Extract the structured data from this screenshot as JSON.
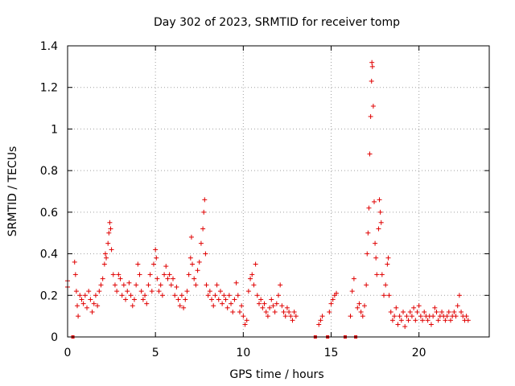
{
  "chart_data": {
    "type": "scatter",
    "title": "Day 302 of 2023, SRMTID for receiver tomp",
    "xlabel": "GPS time / hours",
    "ylabel": "SRMTID / TECUs",
    "xlim": [
      0,
      24
    ],
    "ylim": [
      0,
      1.4
    ],
    "xticks": [
      0,
      5,
      10,
      15,
      20
    ],
    "xtick_labels": [
      "0",
      "5",
      "10",
      "15",
      "20"
    ],
    "yticks": [
      0,
      0.2,
      0.4,
      0.6,
      0.8,
      1,
      1.2,
      1.4
    ],
    "ytick_labels": [
      "0",
      "0.2",
      "0.4",
      "0.6",
      "0.8",
      "1",
      "1.2",
      "1.4"
    ],
    "grid": true,
    "marker": "+",
    "color": "#e00000",
    "zero_markers_x": [
      0.3,
      14.1,
      14.8,
      15.8,
      16.4
    ],
    "series": [
      {
        "name": "SRMTID",
        "points": [
          [
            0.0,
            0.27
          ],
          [
            0.0,
            0.24
          ],
          [
            0.4,
            0.36
          ],
          [
            0.45,
            0.3
          ],
          [
            0.5,
            0.22
          ],
          [
            0.55,
            0.15
          ],
          [
            0.6,
            0.1
          ],
          [
            0.7,
            0.2
          ],
          [
            0.8,
            0.18
          ],
          [
            0.9,
            0.16
          ],
          [
            1.0,
            0.2
          ],
          [
            1.1,
            0.14
          ],
          [
            1.2,
            0.22
          ],
          [
            1.3,
            0.18
          ],
          [
            1.4,
            0.12
          ],
          [
            1.5,
            0.16
          ],
          [
            1.6,
            0.2
          ],
          [
            1.7,
            0.15
          ],
          [
            1.8,
            0.22
          ],
          [
            1.9,
            0.25
          ],
          [
            2.0,
            0.28
          ],
          [
            2.1,
            0.35
          ],
          [
            2.15,
            0.4
          ],
          [
            2.2,
            0.38
          ],
          [
            2.3,
            0.45
          ],
          [
            2.35,
            0.5
          ],
          [
            2.4,
            0.55
          ],
          [
            2.45,
            0.52
          ],
          [
            2.5,
            0.42
          ],
          [
            2.6,
            0.3
          ],
          [
            2.7,
            0.25
          ],
          [
            2.8,
            0.22
          ],
          [
            2.9,
            0.3
          ],
          [
            3.0,
            0.28
          ],
          [
            3.1,
            0.2
          ],
          [
            3.2,
            0.25
          ],
          [
            3.3,
            0.18
          ],
          [
            3.4,
            0.22
          ],
          [
            3.5,
            0.26
          ],
          [
            3.6,
            0.2
          ],
          [
            3.7,
            0.15
          ],
          [
            3.8,
            0.18
          ],
          [
            3.9,
            0.25
          ],
          [
            4.0,
            0.35
          ],
          [
            4.1,
            0.3
          ],
          [
            4.2,
            0.22
          ],
          [
            4.3,
            0.18
          ],
          [
            4.4,
            0.2
          ],
          [
            4.5,
            0.16
          ],
          [
            4.6,
            0.25
          ],
          [
            4.7,
            0.3
          ],
          [
            4.8,
            0.22
          ],
          [
            4.9,
            0.35
          ],
          [
            5.0,
            0.42
          ],
          [
            5.05,
            0.38
          ],
          [
            5.1,
            0.28
          ],
          [
            5.2,
            0.22
          ],
          [
            5.3,
            0.25
          ],
          [
            5.4,
            0.2
          ],
          [
            5.5,
            0.3
          ],
          [
            5.6,
            0.34
          ],
          [
            5.7,
            0.28
          ],
          [
            5.8,
            0.3
          ],
          [
            5.9,
            0.25
          ],
          [
            6.0,
            0.28
          ],
          [
            6.1,
            0.2
          ],
          [
            6.2,
            0.24
          ],
          [
            6.3,
            0.18
          ],
          [
            6.4,
            0.15
          ],
          [
            6.5,
            0.2
          ],
          [
            6.6,
            0.14
          ],
          [
            6.7,
            0.18
          ],
          [
            6.8,
            0.22
          ],
          [
            6.9,
            0.3
          ],
          [
            7.0,
            0.38
          ],
          [
            7.05,
            0.48
          ],
          [
            7.1,
            0.35
          ],
          [
            7.2,
            0.28
          ],
          [
            7.3,
            0.25
          ],
          [
            7.4,
            0.32
          ],
          [
            7.5,
            0.36
          ],
          [
            7.6,
            0.45
          ],
          [
            7.7,
            0.52
          ],
          [
            7.75,
            0.6
          ],
          [
            7.8,
            0.66
          ],
          [
            7.85,
            0.4
          ],
          [
            7.9,
            0.25
          ],
          [
            8.0,
            0.2
          ],
          [
            8.1,
            0.22
          ],
          [
            8.2,
            0.18
          ],
          [
            8.3,
            0.15
          ],
          [
            8.4,
            0.2
          ],
          [
            8.5,
            0.25
          ],
          [
            8.6,
            0.18
          ],
          [
            8.7,
            0.22
          ],
          [
            8.8,
            0.16
          ],
          [
            8.9,
            0.2
          ],
          [
            9.0,
            0.18
          ],
          [
            9.1,
            0.14
          ],
          [
            9.2,
            0.2
          ],
          [
            9.3,
            0.16
          ],
          [
            9.4,
            0.12
          ],
          [
            9.5,
            0.18
          ],
          [
            9.6,
            0.26
          ],
          [
            9.7,
            0.2
          ],
          [
            9.8,
            0.12
          ],
          [
            9.9,
            0.15
          ],
          [
            10.0,
            0.1
          ],
          [
            10.1,
            0.06
          ],
          [
            10.2,
            0.08
          ],
          [
            10.3,
            0.22
          ],
          [
            10.4,
            0.28
          ],
          [
            10.5,
            0.3
          ],
          [
            10.6,
            0.25
          ],
          [
            10.7,
            0.35
          ],
          [
            10.8,
            0.2
          ],
          [
            10.9,
            0.16
          ],
          [
            11.0,
            0.18
          ],
          [
            11.1,
            0.14
          ],
          [
            11.2,
            0.16
          ],
          [
            11.3,
            0.12
          ],
          [
            11.4,
            0.1
          ],
          [
            11.5,
            0.14
          ],
          [
            11.6,
            0.18
          ],
          [
            11.7,
            0.15
          ],
          [
            11.8,
            0.12
          ],
          [
            11.9,
            0.16
          ],
          [
            12.0,
            0.2
          ],
          [
            12.1,
            0.25
          ],
          [
            12.2,
            0.15
          ],
          [
            12.3,
            0.12
          ],
          [
            12.4,
            0.1
          ],
          [
            12.5,
            0.14
          ],
          [
            12.6,
            0.12
          ],
          [
            12.7,
            0.1
          ],
          [
            12.8,
            0.08
          ],
          [
            12.9,
            0.12
          ],
          [
            13.0,
            0.1
          ],
          [
            14.3,
            0.06
          ],
          [
            14.4,
            0.08
          ],
          [
            14.5,
            0.1
          ],
          [
            14.9,
            0.12
          ],
          [
            15.0,
            0.16
          ],
          [
            15.1,
            0.18
          ],
          [
            15.2,
            0.2
          ],
          [
            15.3,
            0.21
          ],
          [
            16.1,
            0.1
          ],
          [
            16.2,
            0.22
          ],
          [
            16.3,
            0.28
          ],
          [
            16.5,
            0.14
          ],
          [
            16.6,
            0.16
          ],
          [
            16.7,
            0.12
          ],
          [
            16.8,
            0.1
          ],
          [
            16.9,
            0.15
          ],
          [
            17.0,
            0.25
          ],
          [
            17.05,
            0.4
          ],
          [
            17.1,
            0.5
          ],
          [
            17.15,
            0.62
          ],
          [
            17.2,
            0.88
          ],
          [
            17.25,
            1.06
          ],
          [
            17.3,
            1.23
          ],
          [
            17.32,
            1.32
          ],
          [
            17.35,
            1.3
          ],
          [
            17.4,
            1.11
          ],
          [
            17.45,
            0.65
          ],
          [
            17.5,
            0.45
          ],
          [
            17.55,
            0.38
          ],
          [
            17.6,
            0.3
          ],
          [
            17.7,
            0.52
          ],
          [
            17.75,
            0.66
          ],
          [
            17.8,
            0.6
          ],
          [
            17.85,
            0.55
          ],
          [
            17.9,
            0.3
          ],
          [
            18.0,
            0.2
          ],
          [
            18.1,
            0.25
          ],
          [
            18.2,
            0.35
          ],
          [
            18.25,
            0.38
          ],
          [
            18.3,
            0.2
          ],
          [
            18.4,
            0.12
          ],
          [
            18.5,
            0.08
          ],
          [
            18.6,
            0.1
          ],
          [
            18.7,
            0.14
          ],
          [
            18.8,
            0.06
          ],
          [
            18.9,
            0.1
          ],
          [
            19.0,
            0.08
          ],
          [
            19.1,
            0.12
          ],
          [
            19.2,
            0.05
          ],
          [
            19.3,
            0.1
          ],
          [
            19.4,
            0.08
          ],
          [
            19.5,
            0.12
          ],
          [
            19.6,
            0.1
          ],
          [
            19.7,
            0.14
          ],
          [
            19.8,
            0.08
          ],
          [
            19.9,
            0.12
          ],
          [
            20.0,
            0.15
          ],
          [
            20.1,
            0.1
          ],
          [
            20.2,
            0.08
          ],
          [
            20.3,
            0.12
          ],
          [
            20.4,
            0.1
          ],
          [
            20.5,
            0.08
          ],
          [
            20.6,
            0.1
          ],
          [
            20.7,
            0.06
          ],
          [
            20.8,
            0.1
          ],
          [
            20.9,
            0.14
          ],
          [
            21.0,
            0.12
          ],
          [
            21.1,
            0.08
          ],
          [
            21.2,
            0.1
          ],
          [
            21.3,
            0.12
          ],
          [
            21.4,
            0.1
          ],
          [
            21.5,
            0.08
          ],
          [
            21.6,
            0.1
          ],
          [
            21.7,
            0.12
          ],
          [
            21.8,
            0.08
          ],
          [
            21.9,
            0.1
          ],
          [
            22.0,
            0.12
          ],
          [
            22.1,
            0.1
          ],
          [
            22.2,
            0.15
          ],
          [
            22.3,
            0.2
          ],
          [
            22.4,
            0.12
          ],
          [
            22.5,
            0.1
          ],
          [
            22.6,
            0.08
          ],
          [
            22.7,
            0.1
          ],
          [
            22.8,
            0.08
          ]
        ]
      }
    ]
  }
}
